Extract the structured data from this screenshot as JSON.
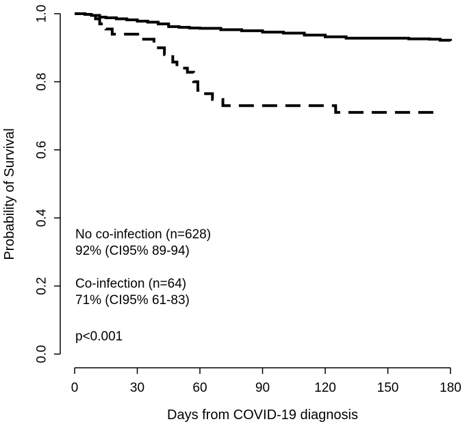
{
  "chart_data": {
    "type": "line",
    "subtype": "kaplan-meier-step",
    "title": "",
    "xlabel": "Days from COVID-19 diagnosis",
    "ylabel": "Probability of Survival",
    "xlim": [
      0,
      180
    ],
    "ylim": [
      0,
      1.0
    ],
    "x_ticks": [
      0,
      30,
      60,
      90,
      120,
      150,
      180
    ],
    "x_tick_labels": [
      "0",
      "30",
      "60",
      "90",
      "120",
      "150",
      "180"
    ],
    "y_ticks": [
      0.0,
      0.2,
      0.4,
      0.6,
      0.8,
      1.0
    ],
    "y_tick_labels": [
      "0.0",
      "0.2",
      "0.4",
      "0.6",
      "0.8",
      "1.0"
    ],
    "grid": false,
    "line_color": "#000000",
    "series": [
      {
        "style": "solid",
        "x": [
          0,
          5,
          8,
          12,
          15,
          20,
          25,
          30,
          35,
          40,
          45,
          50,
          55,
          60,
          70,
          80,
          90,
          100,
          110,
          120,
          130,
          140,
          150,
          160,
          170,
          175,
          180
        ],
        "y": [
          1.0,
          0.998,
          0.995,
          0.99,
          0.988,
          0.985,
          0.982,
          0.978,
          0.975,
          0.97,
          0.962,
          0.96,
          0.958,
          0.957,
          0.953,
          0.95,
          0.946,
          0.943,
          0.937,
          0.932,
          0.928,
          0.928,
          0.928,
          0.926,
          0.925,
          0.922,
          0.92
        ]
      },
      {
        "style": "dashed",
        "x": [
          0,
          5,
          10,
          12,
          15,
          18,
          32,
          38,
          43,
          47,
          49,
          54,
          57,
          59,
          62,
          66,
          71,
          78,
          85,
          95,
          105,
          115,
          125,
          135,
          145,
          155,
          165,
          175
        ],
        "y": [
          1.0,
          0.998,
          0.985,
          0.97,
          0.955,
          0.94,
          0.925,
          0.9,
          0.88,
          0.858,
          0.84,
          0.828,
          0.8,
          0.775,
          0.765,
          0.748,
          0.73,
          0.73,
          0.73,
          0.73,
          0.73,
          0.73,
          0.71,
          0.71,
          0.71,
          0.71,
          0.71,
          0.71
        ]
      }
    ],
    "annotations": [
      "No co-infection (n=628)",
      "92% (CI95% 89-94)",
      "Co-infection (n=64)",
      "71% (CI95% 61-83)",
      "p<0.001"
    ]
  }
}
